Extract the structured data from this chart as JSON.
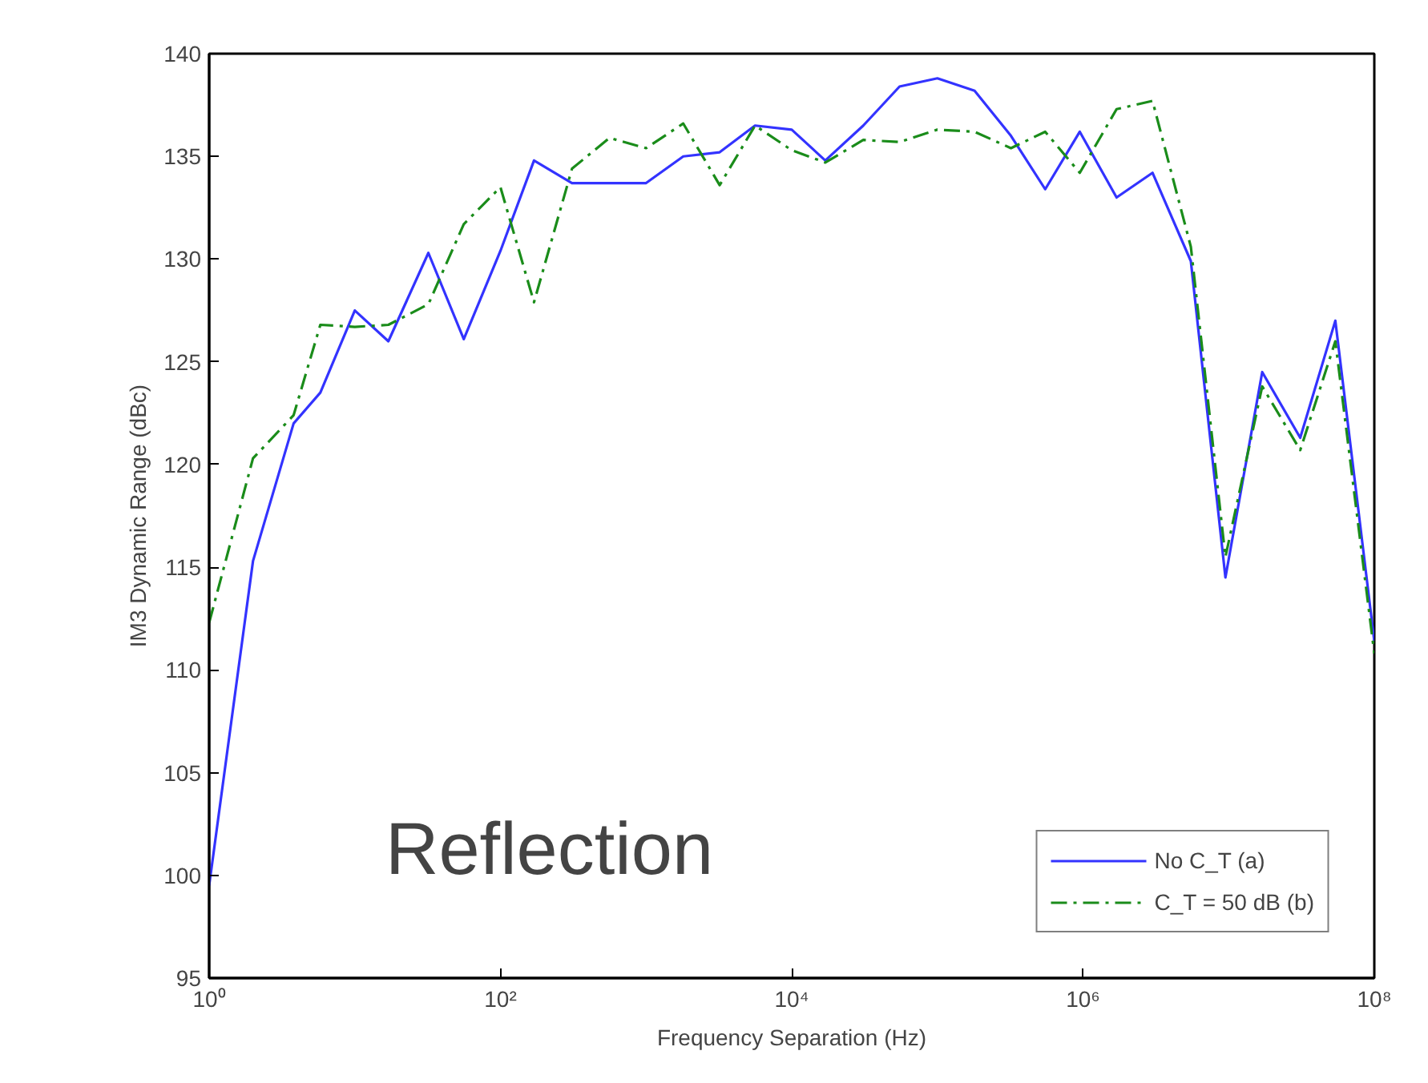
{
  "chart_data": {
    "type": "line",
    "xlabel": "Frequency Separation (Hz)",
    "ylabel": "IM3 Dynamic Range (dBc)",
    "x": [
      1,
      2,
      3.8,
      5.8,
      10,
      17,
      32,
      56,
      100,
      170,
      310,
      560,
      1000,
      1800,
      3200,
      5600,
      10000,
      17000,
      31000,
      55000,
      100000,
      180000,
      320000,
      550000,
      950000,
      1700000,
      3000000,
      5500000,
      9500000,
      17000000,
      31000000,
      54000000,
      100000000
    ],
    "series": [
      {
        "name": "No C_T (a)",
        "color": "#3333ff",
        "line_style": "solid",
        "values": [
          99.5,
          115.3,
          122.0,
          123.5,
          127.5,
          126.0,
          130.3,
          126.1,
          130.4,
          134.8,
          133.7,
          133.7,
          133.7,
          135.0,
          135.2,
          136.5,
          136.3,
          134.8,
          136.5,
          138.4,
          138.8,
          138.2,
          136.0,
          133.4,
          136.2,
          133.0,
          134.2,
          129.9,
          114.5,
          124.5,
          121.3,
          127.0,
          111.4
        ]
      },
      {
        "name": "C_T = 50 dB (b)",
        "color": "#1a8c1a",
        "line_style": "dashdot",
        "values": [
          112.3,
          120.3,
          122.4,
          126.8,
          126.7,
          126.8,
          127.8,
          131.7,
          133.5,
          127.9,
          134.4,
          135.9,
          135.4,
          136.6,
          133.6,
          136.5,
          135.3,
          134.7,
          135.8,
          135.7,
          136.3,
          136.2,
          135.4,
          136.2,
          134.2,
          137.3,
          137.7,
          130.6,
          115.5,
          123.8,
          120.7,
          126.0,
          110.8
        ]
      }
    ],
    "log": "x",
    "xlim": [
      1,
      100000000
    ],
    "xticks": [
      {
        "value": 1,
        "label": "10⁰"
      },
      {
        "value": 100,
        "label": "10²"
      },
      {
        "value": 10000,
        "label": "10⁴"
      },
      {
        "value": 1000000,
        "label": "10⁶"
      },
      {
        "value": 100000000,
        "label": "10⁸"
      }
    ],
    "ylim": [
      95,
      140
    ],
    "yticks": [
      95,
      100,
      105,
      110,
      115,
      120,
      125,
      130,
      135,
      140
    ],
    "grid": false,
    "legend": "bottom right",
    "annotations": [
      "Reflection"
    ]
  }
}
